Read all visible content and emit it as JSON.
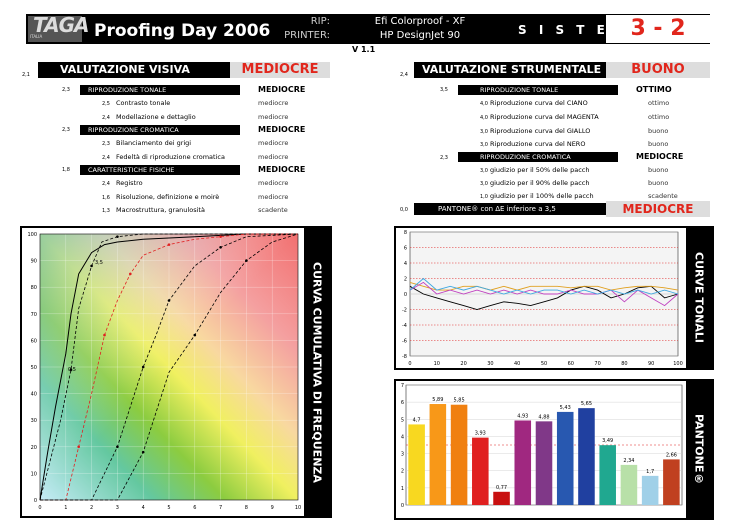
{
  "header": {
    "logo_text": "TAGA",
    "logo_sub": "ITALIA",
    "title": "Proofing Day 2006",
    "rip_label": "RIP:",
    "printer_label": "PRINTER:",
    "rip_value": "Efi Colorproof - XF",
    "printer_value": "HP DesignJet 90",
    "sistema": "S I S T E M A",
    "badge": "3 - 2",
    "version": "V 1.1"
  },
  "left": {
    "sec_num": "2,1",
    "title": "VALUTAZIONE VISIVA",
    "result": "MEDIOCRE",
    "groups": [
      {
        "num": "2,3",
        "label": "RIPRODUZIONE TONALE",
        "result": "MEDIOCRE",
        "items": [
          {
            "num": "2,5",
            "label": "Contrasto tonale",
            "result": "mediocre"
          },
          {
            "num": "2,4",
            "label": "Modellazione e dettaglio",
            "result": "mediocre"
          }
        ]
      },
      {
        "num": "2,3",
        "label": "RIPRODUZIONE CROMATICA",
        "result": "MEDIOCRE",
        "items": [
          {
            "num": "2,3",
            "label": "Bilanciamento dei grigi",
            "result": "mediocre"
          },
          {
            "num": "2,4",
            "label": "Fedeltà di riproduzione cromatica",
            "result": "mediocre"
          }
        ]
      },
      {
        "num": "1,8",
        "label": "CARATTERISTICHE FISICHE",
        "result": "MEDIOCRE",
        "items": [
          {
            "num": "2,4",
            "label": "Registro",
            "result": "mediocre"
          },
          {
            "num": "1,6",
            "label": "Risoluzione, definizione e moirè",
            "result": "mediocre"
          },
          {
            "num": "1,3",
            "label": "Macrostruttura, granulosità",
            "result": "scadente"
          }
        ]
      }
    ]
  },
  "right": {
    "sec_num": "2,4",
    "title": "VALUTAZIONE STRUMENTALE",
    "result": "BUONO",
    "groups": [
      {
        "num": "3,5",
        "label": "RIPRODUZIONE TONALE",
        "result": "OTTIMO",
        "items": [
          {
            "num": "4,0",
            "label": "Riproduzione curva del   CIANO",
            "result": "ottimo"
          },
          {
            "num": "4,0",
            "label": "Riproduzione curva del MAGENTA",
            "result": "ottimo"
          },
          {
            "num": "3,0",
            "label": "Riproduzione curva del  GIALLO",
            "result": "buono"
          },
          {
            "num": "3,0",
            "label": "Riproduzione curva del    NERO",
            "result": "buono"
          }
        ]
      },
      {
        "num": "2,3",
        "label": "RIPRODUZIONE CROMATICA",
        "result": "MEDIOCRE",
        "items": [
          {
            "num": "3,0",
            "label": "giudizio per il   50% delle pacch",
            "result": "buono"
          },
          {
            "num": "3,0",
            "label": "giudizio per il   90% delle pacch",
            "result": "buono"
          },
          {
            "num": "1,0",
            "label": "giudizio per il 100% delle pacch",
            "result": "scadente"
          }
        ]
      }
    ],
    "pantone_num": "0,0",
    "pantone_label": "PANTONE® con ΔE inferiore a 3,5",
    "pantone_result": "MEDIOCRE"
  },
  "panels": {
    "curva": "CURVA CUMULATIVA DI FREQUENZA",
    "tonali": "CURVE TONALI",
    "pantone": "PANTONE®"
  },
  "chart_data": [
    {
      "type": "line",
      "ylim": [
        0,
        100
      ],
      "xlim": [
        0,
        10
      ],
      "x_ticks": [
        "0",
        "1",
        "2",
        "3",
        "4",
        "5",
        "6",
        "7",
        "8",
        "9",
        "10"
      ],
      "y_ticks": [
        "0",
        "10",
        "20",
        "30",
        "40",
        "50",
        "60",
        "70",
        "80",
        "90",
        "100"
      ],
      "series": [
        {
          "x": [
            0,
            0.3,
            0.6,
            1,
            1.2,
            1.5,
            2,
            2.5,
            3,
            4,
            6,
            8,
            10
          ],
          "y": [
            0,
            18,
            35,
            55,
            70,
            85,
            93,
            96,
            97,
            98,
            99,
            100,
            100
          ]
        },
        {
          "x": [
            0,
            0.8,
            1.2,
            1.5,
            2,
            2.4,
            3,
            4,
            5,
            7,
            8,
            10
          ],
          "y": [
            0,
            30,
            49,
            72,
            88,
            97,
            99,
            100,
            100,
            100,
            100,
            100
          ]
        },
        {
          "x": [
            0,
            1,
            1.5,
            2,
            2.5,
            3,
            3.5,
            4,
            5,
            6,
            7,
            8,
            10
          ],
          "y": [
            0,
            0,
            20,
            40,
            62,
            75,
            85,
            92,
            96,
            98,
            99,
            100,
            100
          ]
        },
        {
          "x": [
            0,
            2,
            3,
            3.5,
            4,
            4.5,
            5,
            6,
            7,
            8,
            10
          ],
          "y": [
            0,
            0,
            20,
            35,
            50,
            62,
            75,
            88,
            95,
            99,
            100
          ]
        },
        {
          "x": [
            0,
            3,
            4,
            5,
            6,
            7,
            8,
            9,
            10
          ],
          "y": [
            0,
            0,
            18,
            48,
            62,
            78,
            90,
            97,
            100
          ]
        }
      ],
      "labels": [
        "0,5",
        "3,5"
      ]
    },
    {
      "type": "line",
      "ylim": [
        -8,
        8
      ],
      "xlim": [
        0,
        100
      ],
      "x_ticks": [
        "0",
        "10",
        "20",
        "30",
        "40",
        "50",
        "60",
        "70",
        "80",
        "90",
        "100"
      ],
      "y_ticks": [
        "8",
        "6",
        "4",
        "2",
        "0",
        "-2",
        "-4",
        "-6",
        "-8"
      ],
      "series": [
        {
          "color": "#000000",
          "x": [
            0,
            5,
            10,
            15,
            20,
            25,
            30,
            35,
            40,
            45,
            50,
            55,
            60,
            65,
            70,
            75,
            80,
            85,
            90,
            95,
            100
          ],
          "y": [
            1,
            0,
            -0.5,
            -1,
            -1.5,
            -2,
            -1.5,
            -1,
            -1.2,
            -1.5,
            -1,
            -0.5,
            0.5,
            1,
            0.5,
            -0.5,
            0,
            0.8,
            1,
            -0.5,
            0
          ]
        },
        {
          "color": "#e0a020",
          "x": [
            0,
            5,
            10,
            15,
            20,
            25,
            30,
            35,
            40,
            45,
            50,
            55,
            60,
            65,
            70,
            75,
            80,
            85,
            90,
            95,
            100
          ],
          "y": [
            1.5,
            1,
            0.5,
            0.5,
            1,
            1,
            0.5,
            1,
            0.5,
            1,
            1,
            1,
            0.8,
            1,
            1,
            0.5,
            0.8,
            1,
            1,
            0.8,
            0.5
          ]
        },
        {
          "color": "#c040c0",
          "x": [
            0,
            5,
            10,
            15,
            20,
            25,
            30,
            35,
            40,
            45,
            50,
            55,
            60,
            65,
            70,
            75,
            80,
            85,
            90,
            95,
            100
          ],
          "y": [
            0.5,
            1.5,
            0,
            0.5,
            0,
            0.5,
            0,
            0.5,
            0,
            0.5,
            0,
            0,
            0.5,
            0,
            0,
            0.5,
            -1,
            0.5,
            -0.5,
            -1.5,
            0
          ]
        },
        {
          "color": "#40a8e0",
          "x": [
            0,
            5,
            10,
            15,
            20,
            25,
            30,
            35,
            40,
            45,
            50,
            55,
            60,
            65,
            70,
            75,
            80,
            85,
            90,
            95,
            100
          ],
          "y": [
            0.5,
            2,
            0.5,
            1,
            0.5,
            1,
            0.5,
            0,
            0.5,
            0,
            0.5,
            0.5,
            0,
            0.5,
            0,
            0.5,
            0,
            0.5,
            0,
            0.5,
            0
          ]
        }
      ]
    },
    {
      "type": "bar",
      "ylim": [
        0,
        7
      ],
      "y_ticks": [
        "7",
        "6",
        "5",
        "4",
        "3",
        "2",
        "1",
        "0"
      ],
      "values": [
        4.7,
        5.89,
        5.85,
        3.93,
        0.77,
        4.93,
        4.88,
        5.43,
        5.65,
        3.49,
        2.34,
        1.7,
        2.66
      ],
      "value_labels": [
        "4,7",
        "5,89",
        "5,85",
        "3,93",
        "0,77",
        "4,93",
        "4,88",
        "5,43",
        "5,65",
        "3,49",
        "2,34",
        "1,7",
        "2,66"
      ],
      "colors": [
        "#f8d820",
        "#f89818",
        "#f08010",
        "#e02020",
        "#c81010",
        "#a02880",
        "#803888",
        "#2858b0",
        "#2040a0",
        "#20a890",
        "#b8e0a8",
        "#a0d0e8",
        "#c04020"
      ]
    }
  ]
}
